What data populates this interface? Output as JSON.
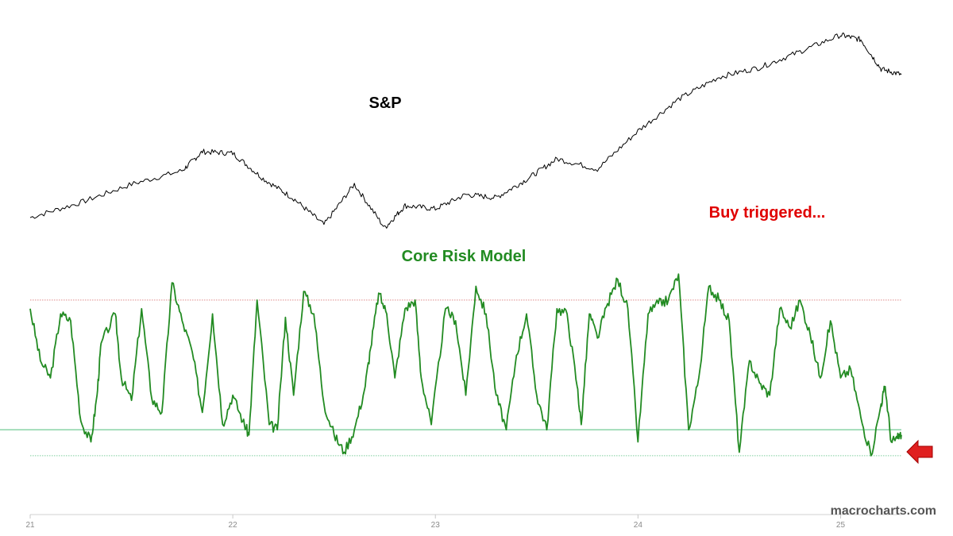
{
  "watermark": "macrocharts.com",
  "chart_data": [
    {
      "type": "line",
      "label": "S&P",
      "color": "#000000",
      "x_ticks": [
        "21",
        "22",
        "23",
        "24",
        "25"
      ],
      "x": [
        "21",
        "21.25",
        "21.5",
        "21.75",
        "21.85",
        "22",
        "22.15",
        "22.3",
        "22.45",
        "22.6",
        "22.75",
        "22.85",
        "23",
        "23.15",
        "23.3",
        "23.45",
        "23.6",
        "23.8",
        "24",
        "24.2",
        "24.4",
        "24.6",
        "24.8",
        "25",
        "25.1",
        "25.2",
        "25.3"
      ],
      "y": [
        3710,
        3900,
        4130,
        4300,
        4540,
        4520,
        4200,
        3950,
        3620,
        4130,
        3580,
        3860,
        3820,
        4000,
        3960,
        4190,
        4450,
        4320,
        4800,
        5200,
        5480,
        5600,
        5800,
        6010,
        5950,
        5580,
        5510
      ]
    },
    {
      "type": "line",
      "label": "Core Risk Model",
      "color": "#228b22",
      "annotation": "Buy triggered...",
      "annotation_color": "#e00000",
      "reference_lines": [
        {
          "value": 0.9,
          "color": "#e08a8a",
          "style": "dotted"
        },
        {
          "value": 0.15,
          "color": "#7fcf9f",
          "style": "solid"
        },
        {
          "value": 0.0,
          "color": "#7fcf9f",
          "style": "dotted"
        }
      ],
      "ylim": [
        -0.12,
        1.12
      ],
      "x": [
        21.0,
        21.05,
        21.1,
        21.15,
        21.2,
        21.25,
        21.3,
        21.33,
        21.35,
        21.42,
        21.45,
        21.5,
        21.55,
        21.6,
        21.65,
        21.7,
        21.75,
        21.8,
        21.85,
        21.9,
        21.95,
        22.0,
        22.05,
        22.08,
        22.12,
        22.18,
        22.22,
        22.26,
        22.3,
        22.35,
        22.4,
        22.45,
        22.5,
        22.55,
        22.6,
        22.65,
        22.68,
        22.72,
        22.76,
        22.8,
        22.85,
        22.9,
        22.93,
        22.98,
        23.05,
        23.1,
        23.15,
        23.2,
        23.25,
        23.3,
        23.35,
        23.4,
        23.45,
        23.5,
        23.55,
        23.6,
        23.65,
        23.7,
        23.72,
        23.76,
        23.8,
        23.85,
        23.9,
        23.95,
        24.0,
        24.05,
        24.1,
        24.15,
        24.2,
        24.25,
        24.3,
        24.35,
        24.4,
        24.45,
        24.5,
        24.55,
        24.6,
        24.65,
        24.7,
        24.75,
        24.8,
        24.85,
        24.9,
        24.95,
        25.0,
        25.05,
        25.1,
        25.15,
        25.2,
        25.22,
        25.25,
        25.28,
        25.3
      ],
      "y": [
        0.85,
        0.55,
        0.45,
        0.82,
        0.78,
        0.2,
        0.08,
        0.35,
        0.65,
        0.82,
        0.45,
        0.32,
        0.85,
        0.33,
        0.25,
        1.0,
        0.78,
        0.6,
        0.25,
        0.82,
        0.18,
        0.35,
        0.2,
        0.12,
        0.9,
        0.18,
        0.15,
        0.8,
        0.35,
        0.95,
        0.82,
        0.3,
        0.12,
        0.02,
        0.15,
        0.38,
        0.62,
        0.94,
        0.82,
        0.45,
        0.85,
        0.9,
        0.45,
        0.18,
        0.85,
        0.78,
        0.35,
        0.98,
        0.82,
        0.35,
        0.15,
        0.58,
        0.82,
        0.35,
        0.15,
        0.85,
        0.82,
        0.4,
        0.18,
        0.82,
        0.68,
        0.88,
        1.02,
        0.85,
        0.08,
        0.82,
        0.88,
        0.9,
        1.05,
        0.15,
        0.45,
        0.98,
        0.9,
        0.78,
        0.02,
        0.55,
        0.42,
        0.35,
        0.85,
        0.74,
        0.9,
        0.7,
        0.45,
        0.78,
        0.45,
        0.5,
        0.22,
        0.0,
        0.3,
        0.4,
        0.08,
        0.1,
        0.12
      ]
    }
  ]
}
